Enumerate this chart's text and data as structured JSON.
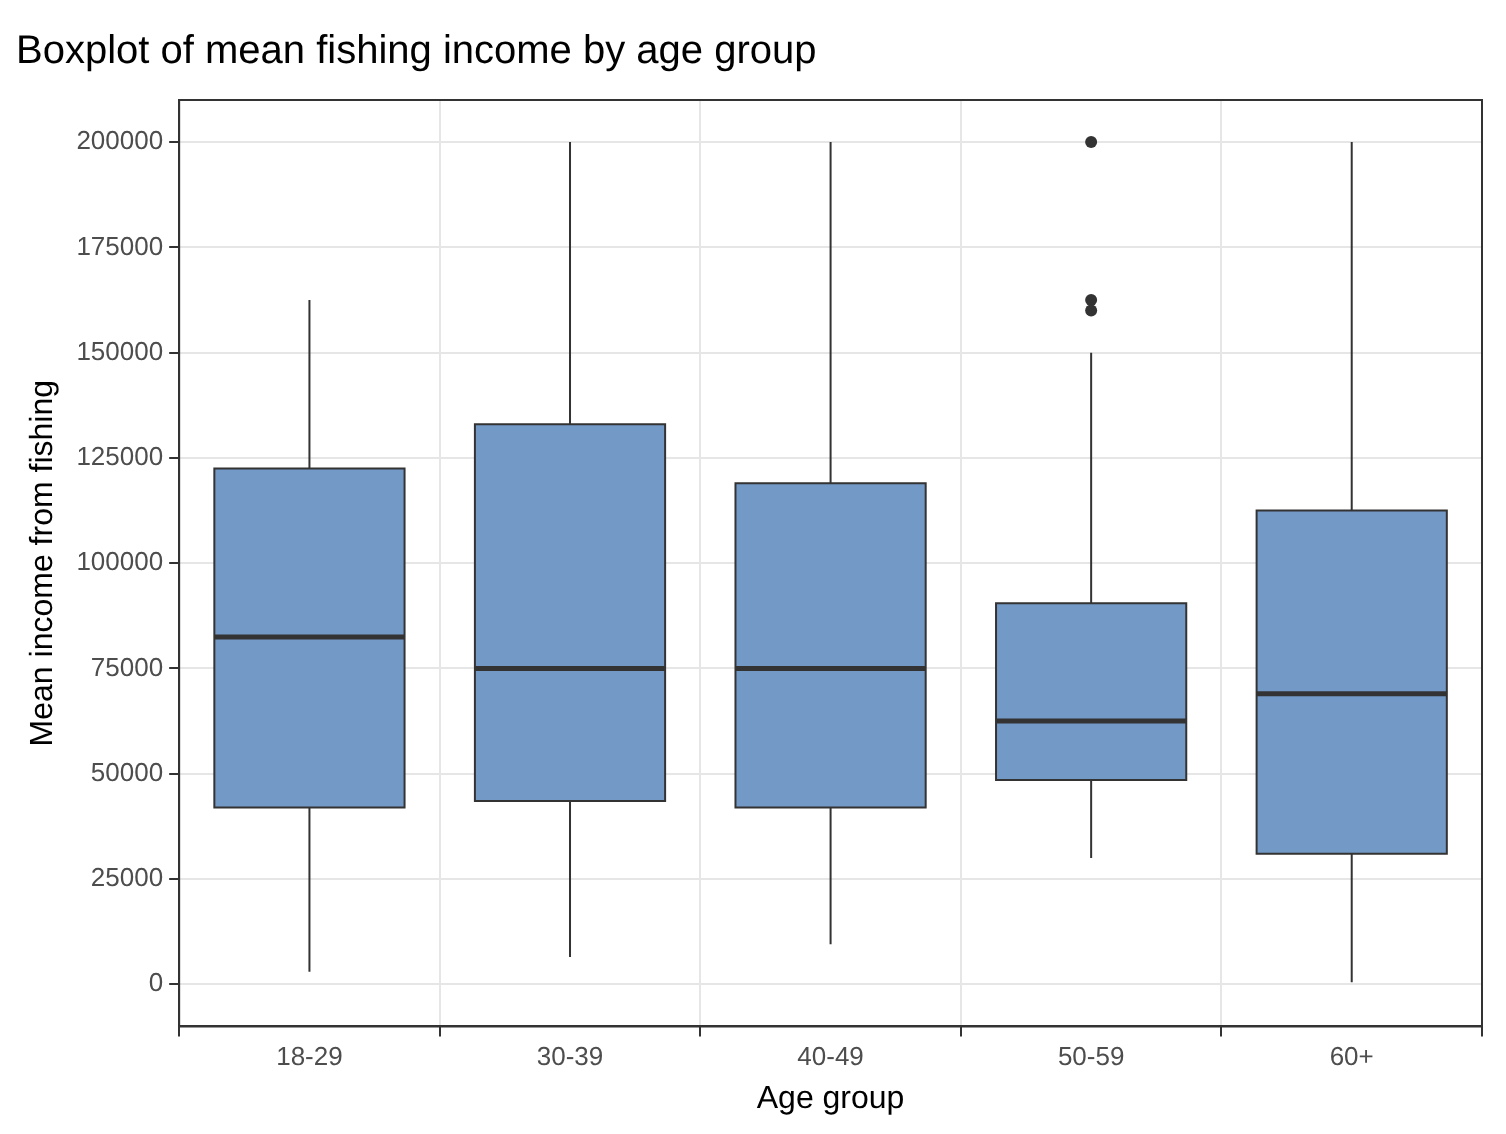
{
  "chart_data": {
    "type": "box",
    "title": "Boxplot of mean fishing income by age group",
    "xlabel": "Age group",
    "ylabel": "Mean income from fishing",
    "categories": [
      "18-29",
      "30-39",
      "40-49",
      "50-59",
      "60+"
    ],
    "color": "#7399c6",
    "boxes": [
      {
        "low": 3000,
        "q1": 42000,
        "median": 82500,
        "q3": 122500,
        "high": 162500
      },
      {
        "low": 6500,
        "q1": 43500,
        "median": 75000,
        "q3": 133000,
        "high": 200000
      },
      {
        "low": 9500,
        "q1": 42000,
        "median": 75000,
        "q3": 119000,
        "high": 200000
      },
      {
        "low": 30000,
        "q1": 48500,
        "median": 62500,
        "q3": 90500,
        "high": 150000,
        "outliers": [
          200000,
          162500,
          160000
        ]
      },
      {
        "low": 500,
        "q1": 31000,
        "median": 69000,
        "q3": 112500,
        "high": 200000
      }
    ],
    "ylim": [
      -10000,
      210000
    ],
    "yticks": [
      0,
      25000,
      50000,
      75000,
      100000,
      125000,
      150000,
      175000,
      200000
    ],
    "grid": true
  }
}
